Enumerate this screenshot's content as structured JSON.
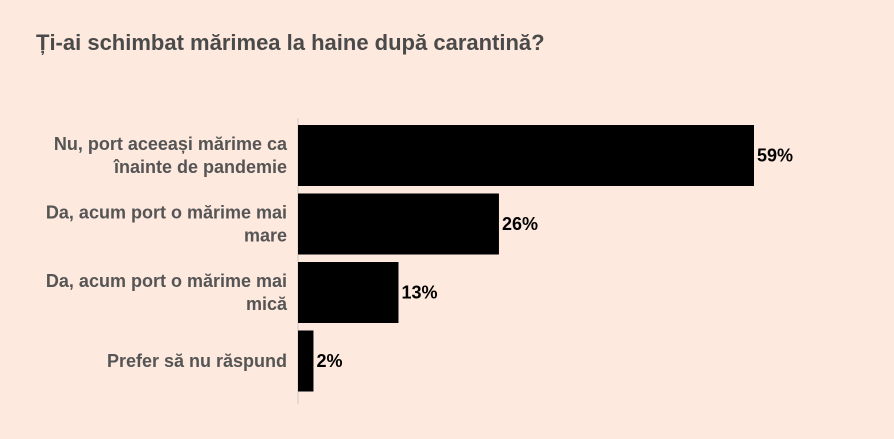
{
  "chart_data": {
    "type": "bar",
    "orientation": "horizontal",
    "title": "Ți-ai schimbat mărimea la haine după carantină?",
    "categories": [
      [
        "Nu, port aceeași mărime ca",
        "înainte de pandemie"
      ],
      [
        "Da, acum port o mărime mai",
        "mare"
      ],
      [
        "Da, acum port o mărime mai",
        "mică"
      ],
      [
        "Prefer să nu răspund"
      ]
    ],
    "values": [
      59,
      26,
      13,
      2
    ],
    "value_labels": [
      "59%",
      "26%",
      "13%",
      "2%"
    ],
    "xlim": [
      0,
      60
    ],
    "bar_color": "#000000",
    "axis_color": "#cccccc",
    "background": "#fde9de",
    "grid": false
  }
}
